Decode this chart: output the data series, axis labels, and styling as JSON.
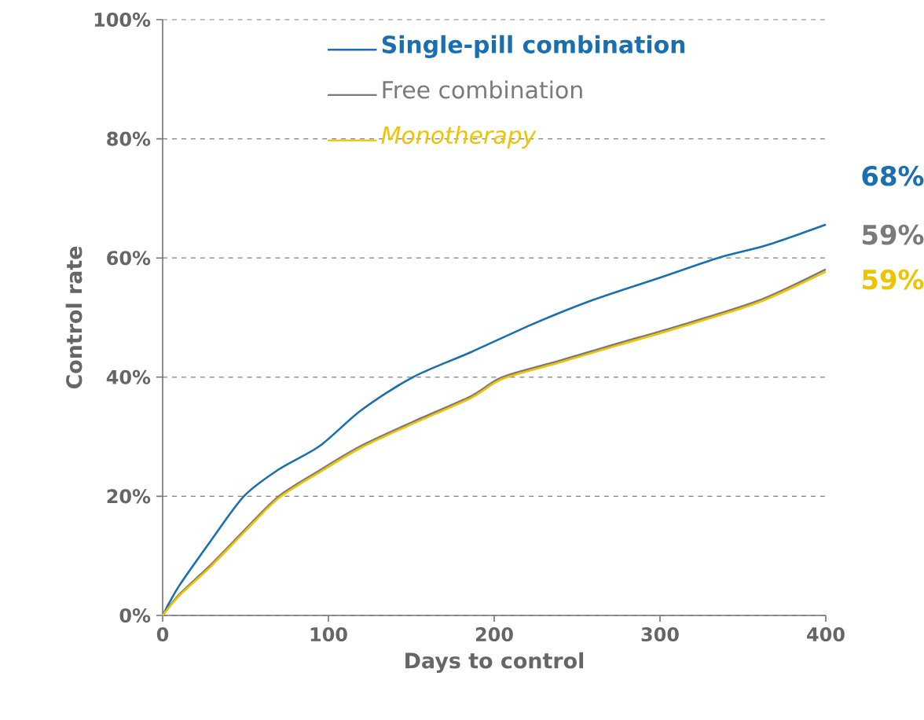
{
  "chart_data": {
    "type": "line",
    "xlabel": "Days to control",
    "ylabel": "Control rate",
    "xlim": [
      0,
      400
    ],
    "xticks": [
      0,
      100,
      200,
      300,
      400
    ],
    "ylim": [
      0,
      100
    ],
    "yticks": [
      {
        "value": 0,
        "label": "0%"
      },
      {
        "value": 20,
        "label": "20%"
      },
      {
        "value": 40,
        "label": "40%"
      },
      {
        "value": 60,
        "label": "60%"
      },
      {
        "value": 80,
        "label": "80%"
      },
      {
        "value": 100,
        "label": "100%"
      }
    ],
    "grid": "y",
    "legend": "top",
    "marker": "none",
    "line_style": "solid",
    "series": [
      {
        "name": "Single-pill combination",
        "color": "#1a6fb0",
        "x": [
          0,
          10,
          29,
          49,
          70,
          95,
          120,
          151,
          186,
          224,
          260,
          300,
          335,
          365,
          400
        ],
        "values": [
          0,
          5,
          12.5,
          20,
          24.5,
          28.5,
          34.5,
          40,
          44.2,
          49,
          53,
          56.7,
          60,
          62.2,
          65.6
        ]
      },
      {
        "name": "Free combination",
        "color": "#7a7a7a",
        "x": [
          0,
          10,
          29,
          50,
          70,
          95,
          120,
          151,
          186,
          205,
          240,
          274,
          310,
          359,
          400
        ],
        "values": [
          0,
          3.5,
          8.5,
          14.5,
          20,
          24.4,
          28.5,
          32.5,
          36.8,
          40,
          42.8,
          45.6,
          48.5,
          52.8,
          58.1
        ]
      },
      {
        "name": "Monotherapy",
        "color": "#f0c300",
        "x": [
          0,
          10,
          29,
          50,
          70,
          95,
          120,
          151,
          186,
          205,
          240,
          274,
          310,
          359,
          400
        ],
        "values": [
          0,
          3.3,
          8.2,
          14.2,
          19.7,
          24.1,
          28.2,
          32.2,
          36.5,
          39.7,
          42.5,
          45.3,
          48.2,
          52.5,
          57.7
        ]
      }
    ],
    "annotations": [
      "68%",
      "59%",
      "59%"
    ]
  }
}
